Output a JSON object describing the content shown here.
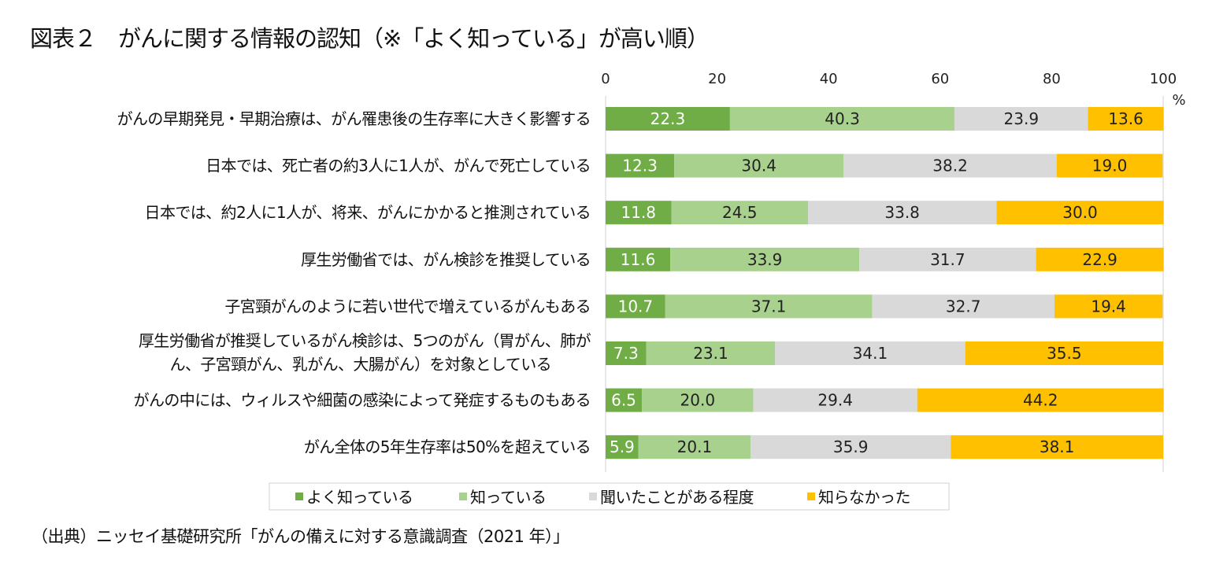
{
  "title": "図表２　がんに関する情報の認知（※「よく知っている」が高い順）",
  "source": "（出典）ニッセイ基礎研究所「がんの備えに対する意識調査（2021 年）」",
  "chart_data": {
    "type": "bar",
    "orientation": "horizontal",
    "stacked": true,
    "unit_label": "%",
    "xlim": [
      0,
      100
    ],
    "xticks": [
      "0",
      "20",
      "40",
      "60",
      "80",
      "100"
    ],
    "legend_position": "bottom",
    "categories": [
      [
        "がんの早期発見・早期治療は、がん罹患後の生存率に大きく影響する"
      ],
      [
        "日本では、死亡者の約3人に1人が、がんで死亡している"
      ],
      [
        "日本では、約2人に1人が、将来、がんにかかると推測されている"
      ],
      [
        "厚生労働省では、がん検診を推奨している"
      ],
      [
        "子宮頸がんのように若い世代で増えているがんもある"
      ],
      [
        "厚生労働省が推奨しているがん検診は、5つのがん（胃がん、肺が",
        "ん、子宮頸がん、乳がん、大腸がん）を対象としている"
      ],
      [
        "がんの中には、ウィルスや細菌の感染によって発症するものもある"
      ],
      [
        "がん全体の5年生存率は50%を超えている"
      ]
    ],
    "series": [
      {
        "name": "よく知っている",
        "color": "#70ad47",
        "label_color": "#ffffff",
        "values": [
          22.3,
          12.3,
          11.8,
          11.6,
          10.7,
          7.3,
          6.5,
          5.9
        ]
      },
      {
        "name": "知っている",
        "color": "#a9d18e",
        "label_color": "#222222",
        "values": [
          40.3,
          30.4,
          24.5,
          33.9,
          37.1,
          23.1,
          20.0,
          20.1
        ]
      },
      {
        "name": "聞いたことがある程度",
        "color": "#d9d9d9",
        "label_color": "#222222",
        "values": [
          23.9,
          38.2,
          33.8,
          31.7,
          32.7,
          34.1,
          29.4,
          35.9
        ]
      },
      {
        "name": "知らなかった",
        "color": "#ffc000",
        "label_color": "#222222",
        "values": [
          13.6,
          19.0,
          30.0,
          22.9,
          19.4,
          35.5,
          44.2,
          38.1
        ]
      }
    ]
  }
}
